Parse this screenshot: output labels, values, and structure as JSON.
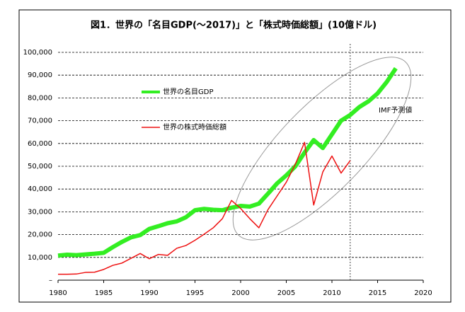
{
  "chart_data": {
    "type": "line",
    "title": "図1．世界の「名目GDP(～2017)」と「株式時価総額」(10億ドル)",
    "x": [
      1980,
      1981,
      1982,
      1983,
      1984,
      1985,
      1986,
      1987,
      1988,
      1989,
      1990,
      1991,
      1992,
      1993,
      1994,
      1995,
      1996,
      1997,
      1998,
      1999,
      2000,
      2001,
      2002,
      2003,
      2004,
      2005,
      2006,
      2007,
      2008,
      2009,
      2010,
      2011,
      2012,
      2013,
      2014,
      2015,
      2016,
      2017
    ],
    "series": [
      {
        "name": "世界の名目GDP",
        "color": "#33ee22",
        "width": 6,
        "values": [
          10800,
          11200,
          11000,
          11300,
          11600,
          12000,
          14500,
          16800,
          18800,
          19800,
          22500,
          23700,
          25000,
          25800,
          27600,
          30700,
          31300,
          30900,
          30700,
          31800,
          32600,
          32300,
          33600,
          38000,
          42500,
          46000,
          50000,
          56000,
          61500,
          58000,
          64000,
          70000,
          72500,
          76000,
          78500,
          82000,
          87000,
          93000
        ]
      },
      {
        "name": "世界の株式時価総額",
        "color": "#ee1111",
        "width": 1.5,
        "values": [
          2600,
          2600,
          2700,
          3400,
          3500,
          4700,
          6500,
          7500,
          9600,
          11700,
          9400,
          11300,
          10900,
          14000,
          15200,
          17500,
          20200,
          23000,
          27000,
          35000,
          31500,
          27000,
          23000,
          31000,
          37000,
          43000,
          51000,
          60500,
          33000,
          47500,
          54500,
          47000,
          52500,
          null,
          null,
          null,
          null,
          null
        ]
      }
    ],
    "annotations": [
      "IMF予測値"
    ],
    "vline_x": 2012,
    "xlim": [
      1980,
      2020
    ],
    "xticks": [
      1980,
      1985,
      1990,
      1995,
      2000,
      2005,
      2010,
      2015,
      2020
    ],
    "ylim": [
      0,
      100000
    ],
    "yticks": [
      {
        "value": 0,
        "label": "–"
      },
      {
        "value": 10000,
        "label": "10,000"
      },
      {
        "value": 20000,
        "label": "20,000"
      },
      {
        "value": 30000,
        "label": "30,000"
      },
      {
        "value": 40000,
        "label": "40,000"
      },
      {
        "value": 50000,
        "label": "50,000"
      },
      {
        "value": 60000,
        "label": "60,000"
      },
      {
        "value": 70000,
        "label": "70,000"
      },
      {
        "value": 80000,
        "label": "80,000"
      },
      {
        "value": 90000,
        "label": "90,000"
      },
      {
        "value": 100000,
        "label": "100,000"
      }
    ],
    "grid": true
  }
}
